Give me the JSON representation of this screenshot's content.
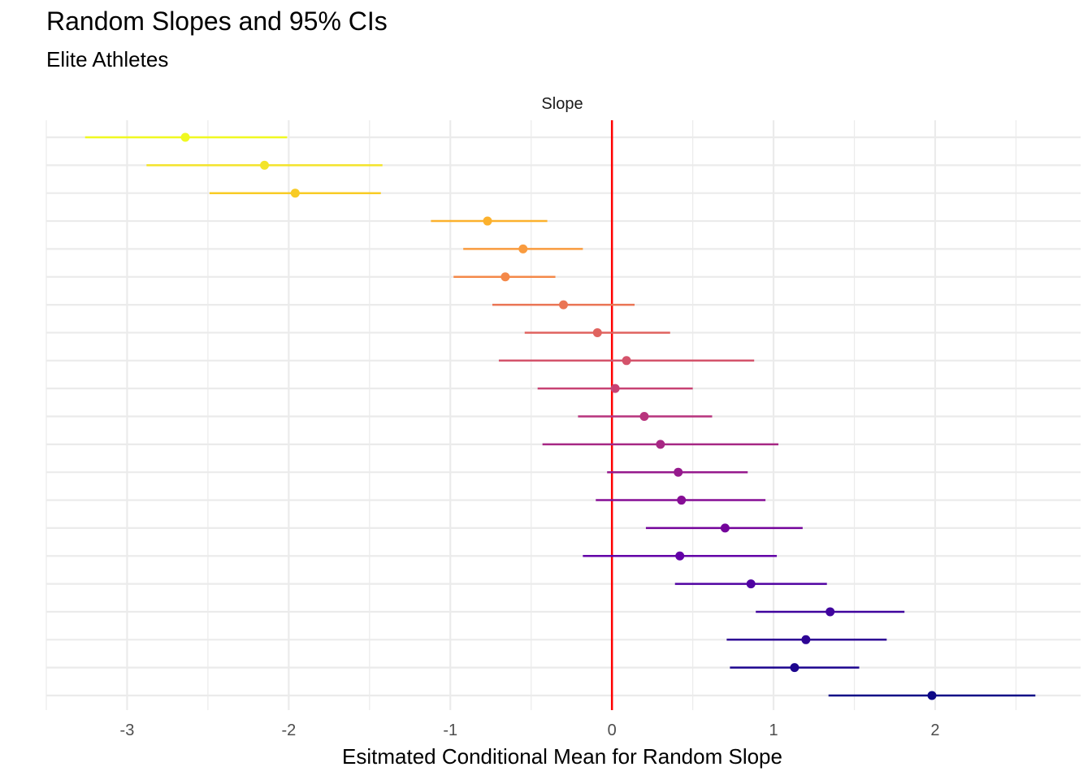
{
  "title": "Random Slopes and 95% CIs",
  "subtitle": "Elite Athletes",
  "chart_data": {
    "type": "scatter",
    "facet_label": "Slope",
    "xlabel": "Esitmated Conditional Mean for Random Slope",
    "xlim": [
      -3.5,
      2.9
    ],
    "x_ticks": [
      -3,
      -2,
      -1,
      0,
      1,
      2
    ],
    "x_tick_labels": [
      "-3",
      "-2",
      "-1",
      "0",
      "1",
      "2"
    ],
    "reference_line": {
      "x": 0,
      "color": "#FF0000"
    },
    "grid": true,
    "color_scale": "plasma",
    "points": [
      {
        "estimate": -2.64,
        "lower": -3.26,
        "upper": -2.01,
        "color": "#F0F921"
      },
      {
        "estimate": -2.15,
        "lower": -2.88,
        "upper": -1.42,
        "color": "#F3E42A"
      },
      {
        "estimate": -1.96,
        "lower": -2.49,
        "upper": -1.43,
        "color": "#F8CB24"
      },
      {
        "estimate": -0.77,
        "lower": -1.12,
        "upper": -0.4,
        "color": "#FCB12D"
      },
      {
        "estimate": -0.55,
        "lower": -0.92,
        "upper": -0.18,
        "color": "#F99B3E"
      },
      {
        "estimate": -0.66,
        "lower": -0.98,
        "upper": -0.35,
        "color": "#F48849"
      },
      {
        "estimate": -0.3,
        "lower": -0.74,
        "upper": 0.14,
        "color": "#EA7554"
      },
      {
        "estimate": -0.09,
        "lower": -0.54,
        "upper": 0.36,
        "color": "#E0635F"
      },
      {
        "estimate": 0.09,
        "lower": -0.7,
        "upper": 0.88,
        "color": "#D4536B"
      },
      {
        "estimate": 0.02,
        "lower": -0.46,
        "upper": 0.5,
        "color": "#C74273"
      },
      {
        "estimate": 0.2,
        "lower": -0.21,
        "upper": 0.62,
        "color": "#B8337D"
      },
      {
        "estimate": 0.3,
        "lower": -0.43,
        "upper": 1.03,
        "color": "#A72784"
      },
      {
        "estimate": 0.41,
        "lower": -0.03,
        "upper": 0.84,
        "color": "#961A8D"
      },
      {
        "estimate": 0.43,
        "lower": -0.1,
        "upper": 0.95,
        "color": "#860E95"
      },
      {
        "estimate": 0.7,
        "lower": 0.21,
        "upper": 1.18,
        "color": "#74049B"
      },
      {
        "estimate": 0.42,
        "lower": -0.18,
        "upper": 1.02,
        "color": "#6300A7"
      },
      {
        "estimate": 0.86,
        "lower": 0.39,
        "upper": 1.33,
        "color": "#5002A2"
      },
      {
        "estimate": 1.35,
        "lower": 0.89,
        "upper": 1.81,
        "color": "#40049E"
      },
      {
        "estimate": 1.2,
        "lower": 0.71,
        "upper": 1.7,
        "color": "#2E0595"
      },
      {
        "estimate": 1.13,
        "lower": 0.73,
        "upper": 1.53,
        "color": "#1D068F"
      },
      {
        "estimate": 1.98,
        "lower": 1.34,
        "upper": 2.62,
        "color": "#0D0887"
      }
    ]
  }
}
